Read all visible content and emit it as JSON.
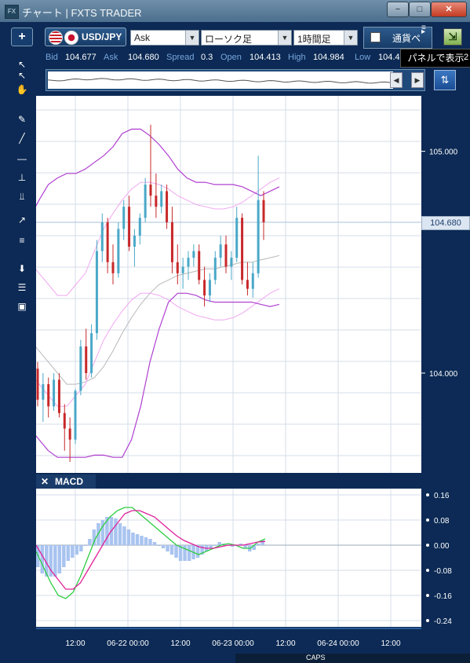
{
  "window": {
    "title": "チャート | FXTS TRADER",
    "app_icon": "FX",
    "min_label": "−",
    "max_label": "□",
    "close_label": "✕"
  },
  "toolbar": {
    "add_label": "+",
    "symbol": "USD/JPY",
    "price_type": "Ask",
    "chart_type": "ローソク足",
    "interval": "1時間足",
    "currency_tab": "通貨ペ",
    "tooltip": "パネルで表示",
    "dropdown_arrow": "▼"
  },
  "quote": {
    "bid_label": "Bid",
    "bid": "104.677",
    "ask_label": "Ask",
    "ask": "104.680",
    "spread_label": "Spread",
    "spread": "0.3",
    "open_label": "Open",
    "open": "104.413",
    "high_label": "High",
    "high": "104.984",
    "low_label": "Low",
    "low": "104.4",
    "extra": "2"
  },
  "overview": {
    "left_arrow": "◀",
    "right_arrow": "▶",
    "fit_icon": "⇅"
  },
  "left_tools": [
    {
      "name": "cursor-arrow-icon",
      "glyph": "↖"
    },
    {
      "name": "crosshair-cursor-icon",
      "glyph": "↖"
    },
    {
      "name": "hand-pan-icon",
      "glyph": "✋"
    },
    {
      "name": "pencil-icon",
      "glyph": "✎"
    },
    {
      "name": "trend-line-icon",
      "glyph": "╱"
    },
    {
      "name": "horizontal-line-icon",
      "glyph": "—"
    },
    {
      "name": "vertical-line-icon",
      "glyph": "⊥"
    },
    {
      "name": "parallel-lines-icon",
      "glyph": "⫫"
    },
    {
      "name": "fan-lines-icon",
      "glyph": "↗"
    },
    {
      "name": "fibonacci-icon",
      "glyph": "≡"
    },
    {
      "name": "download-icon",
      "glyph": "⬇"
    },
    {
      "name": "list-icon",
      "glyph": "☰"
    },
    {
      "name": "camera-icon",
      "glyph": "▣"
    }
  ],
  "chart": {
    "current_price": "104.680",
    "price_ticks": [
      "105.000",
      "104.000"
    ],
    "macd_label": "MACD",
    "macd_close": "✕",
    "macd_ticks": [
      "0.16",
      "0.08",
      "0.00",
      "-0.08",
      "-0.16",
      "-0.24"
    ],
    "time_ticks": [
      "12:00",
      "06-22 00:00",
      "12:00",
      "06-23 00:00",
      "12:00",
      "06-24 00:00",
      "12:00"
    ]
  },
  "chart_data": [
    {
      "type": "candlestick",
      "title": "",
      "symbol": "USD/JPY",
      "interval": "1時間足",
      "ylim": [
        103.55,
        105.25
      ],
      "y_ticks": [
        105.0,
        104.0
      ],
      "current_price": 104.68,
      "candles": [
        {
          "o": 104.02,
          "h": 104.05,
          "l": 103.85,
          "c": 103.88
        },
        {
          "o": 103.88,
          "h": 104.0,
          "l": 103.78,
          "c": 103.95
        },
        {
          "o": 103.95,
          "h": 103.98,
          "l": 103.8,
          "c": 103.85
        },
        {
          "o": 103.85,
          "h": 104.0,
          "l": 103.83,
          "c": 103.97
        },
        {
          "o": 103.97,
          "h": 104.0,
          "l": 103.8,
          "c": 103.82
        },
        {
          "o": 103.82,
          "h": 103.86,
          "l": 103.65,
          "c": 103.75
        },
        {
          "o": 103.75,
          "h": 103.8,
          "l": 103.6,
          "c": 103.7
        },
        {
          "o": 103.7,
          "h": 103.93,
          "l": 103.68,
          "c": 103.92
        },
        {
          "o": 103.92,
          "h": 104.15,
          "l": 103.9,
          "c": 104.12
        },
        {
          "o": 104.12,
          "h": 104.2,
          "l": 103.97,
          "c": 104.0
        },
        {
          "o": 104.0,
          "h": 104.22,
          "l": 103.98,
          "c": 104.18
        },
        {
          "o": 104.18,
          "h": 104.6,
          "l": 104.15,
          "c": 104.55
        },
        {
          "o": 104.55,
          "h": 104.72,
          "l": 104.5,
          "c": 104.68
        },
        {
          "o": 104.68,
          "h": 104.7,
          "l": 104.45,
          "c": 104.5
        },
        {
          "o": 104.5,
          "h": 104.58,
          "l": 104.4,
          "c": 104.45
        },
        {
          "o": 104.45,
          "h": 104.68,
          "l": 104.43,
          "c": 104.65
        },
        {
          "o": 104.65,
          "h": 104.78,
          "l": 104.6,
          "c": 104.75
        },
        {
          "o": 104.75,
          "h": 104.8,
          "l": 104.55,
          "c": 104.57
        },
        {
          "o": 104.57,
          "h": 104.65,
          "l": 104.48,
          "c": 104.62
        },
        {
          "o": 104.62,
          "h": 104.72,
          "l": 104.58,
          "c": 104.7
        },
        {
          "o": 104.7,
          "h": 104.88,
          "l": 104.68,
          "c": 104.85
        },
        {
          "o": 104.85,
          "h": 105.12,
          "l": 104.75,
          "c": 104.8
        },
        {
          "o": 104.8,
          "h": 104.9,
          "l": 104.7,
          "c": 104.75
        },
        {
          "o": 104.75,
          "h": 104.85,
          "l": 104.72,
          "c": 104.82
        },
        {
          "o": 104.82,
          "h": 104.85,
          "l": 104.65,
          "c": 104.68
        },
        {
          "o": 104.68,
          "h": 104.75,
          "l": 104.45,
          "c": 104.5
        },
        {
          "o": 104.5,
          "h": 104.58,
          "l": 104.4,
          "c": 104.45
        },
        {
          "o": 104.45,
          "h": 104.52,
          "l": 104.38,
          "c": 104.48
        },
        {
          "o": 104.48,
          "h": 104.55,
          "l": 104.42,
          "c": 104.52
        },
        {
          "o": 104.52,
          "h": 104.58,
          "l": 104.48,
          "c": 104.55
        },
        {
          "o": 104.55,
          "h": 104.58,
          "l": 104.4,
          "c": 104.42
        },
        {
          "o": 104.42,
          "h": 104.48,
          "l": 104.3,
          "c": 104.35
        },
        {
          "o": 104.35,
          "h": 104.45,
          "l": 104.32,
          "c": 104.42
        },
        {
          "o": 104.42,
          "h": 104.55,
          "l": 104.4,
          "c": 104.52
        },
        {
          "o": 104.52,
          "h": 104.62,
          "l": 104.48,
          "c": 104.58
        },
        {
          "o": 104.58,
          "h": 104.62,
          "l": 104.45,
          "c": 104.48
        },
        {
          "o": 104.48,
          "h": 104.55,
          "l": 104.42,
          "c": 104.52
        },
        {
          "o": 104.52,
          "h": 104.75,
          "l": 104.5,
          "c": 104.7
        },
        {
          "o": 104.7,
          "h": 104.72,
          "l": 104.4,
          "c": 104.42
        },
        {
          "o": 104.42,
          "h": 104.5,
          "l": 104.35,
          "c": 104.38
        },
        {
          "o": 104.38,
          "h": 104.5,
          "l": 104.34,
          "c": 104.45
        },
        {
          "o": 104.45,
          "h": 104.98,
          "l": 104.43,
          "c": 104.78
        },
        {
          "o": 104.78,
          "h": 104.82,
          "l": 104.6,
          "c": 104.68
        }
      ],
      "bollinger_upper": [
        104.7,
        104.78,
        104.85,
        104.88,
        104.9,
        104.9,
        104.92,
        104.95,
        104.98,
        105.02,
        105.08,
        105.1,
        105.1,
        105.07,
        105.03,
        104.98,
        104.92,
        104.88,
        104.86,
        104.86,
        104.85,
        104.85,
        104.85,
        104.84,
        104.82,
        104.8,
        104.82,
        104.84
      ],
      "bollinger_mid": [
        104.3,
        104.25,
        104.2,
        104.15,
        104.15,
        104.2,
        104.25,
        104.35,
        104.45,
        104.52,
        104.58,
        104.63,
        104.66,
        104.66,
        104.65,
        104.63,
        104.6,
        104.58,
        104.56,
        104.55,
        104.54,
        104.54,
        104.55,
        104.57,
        104.6,
        104.63,
        104.66,
        104.68
      ],
      "bollinger_lower": [
        103.75,
        103.7,
        103.65,
        103.62,
        103.62,
        103.62,
        103.62,
        103.63,
        103.63,
        103.62,
        103.62,
        103.7,
        103.85,
        104.05,
        104.2,
        104.32,
        104.36,
        104.36,
        104.35,
        104.33,
        104.32,
        104.32,
        104.32,
        104.32,
        104.32,
        104.31,
        104.3,
        104.31
      ],
      "sma": [
        104.15,
        104.1,
        104.05,
        104.0,
        103.95,
        103.95,
        103.96,
        103.98,
        104.03,
        104.1,
        104.18,
        104.25,
        104.31,
        104.36,
        104.4,
        104.42,
        104.44,
        104.45,
        104.46,
        104.47,
        104.47,
        104.48,
        104.49,
        104.5,
        104.5,
        104.51,
        104.52,
        104.53
      ]
    },
    {
      "type": "macd",
      "title": "MACD",
      "ylim": [
        -0.26,
        0.18
      ],
      "y_ticks": [
        0.16,
        0.08,
        0.0,
        -0.08,
        -0.16,
        -0.24
      ],
      "histogram": [
        -0.07,
        -0.09,
        -0.1,
        -0.1,
        -0.1,
        -0.09,
        -0.07,
        -0.05,
        -0.04,
        -0.03,
        -0.02,
        0.0,
        0.02,
        0.05,
        0.07,
        0.08,
        0.09,
        0.09,
        0.085,
        0.07,
        0.06,
        0.05,
        0.04,
        0.035,
        0.03,
        0.025,
        0.02,
        0.01,
        0.0,
        -0.01,
        -0.02,
        -0.03,
        -0.04,
        -0.05,
        -0.05,
        -0.05,
        -0.045,
        -0.04,
        -0.03,
        -0.02,
        -0.01,
        0.0,
        0.01,
        0.005,
        0.0,
        -0.005,
        0.0,
        0.005,
        -0.01,
        -0.02,
        -0.015,
        0.005,
        0.015
      ],
      "macd_line": [
        -0.02,
        -0.07,
        -0.12,
        -0.16,
        -0.17,
        -0.15,
        -0.1,
        -0.04,
        0.02,
        0.06,
        0.09,
        0.11,
        0.12,
        0.12,
        0.1,
        0.08,
        0.06,
        0.04,
        0.02,
        0.0,
        -0.01,
        -0.02,
        -0.03,
        -0.02,
        -0.01,
        0.0,
        0.005,
        0.0,
        -0.01,
        -0.01,
        0.01,
        0.02
      ],
      "signal_line": [
        0.0,
        -0.04,
        -0.08,
        -0.11,
        -0.14,
        -0.14,
        -0.12,
        -0.08,
        -0.04,
        0.0,
        0.04,
        0.07,
        0.1,
        0.11,
        0.11,
        0.1,
        0.09,
        0.07,
        0.05,
        0.03,
        0.015,
        0.005,
        -0.005,
        -0.01,
        -0.01,
        -0.005,
        0.0,
        0.0,
        0.0,
        0.005,
        0.01,
        0.012
      ],
      "colors": {
        "macd": "#2ecc40",
        "signal": "#e0209a",
        "histogram": "#a9c4f0"
      }
    }
  ],
  "colors": {
    "bull": "#4aa8c8",
    "bear": "#c8282a",
    "bollinger_outer": "#b040d0",
    "bollinger_mid": "#f0a8f0",
    "sma": "#b8b8b8",
    "grid": "#d6dde8"
  }
}
